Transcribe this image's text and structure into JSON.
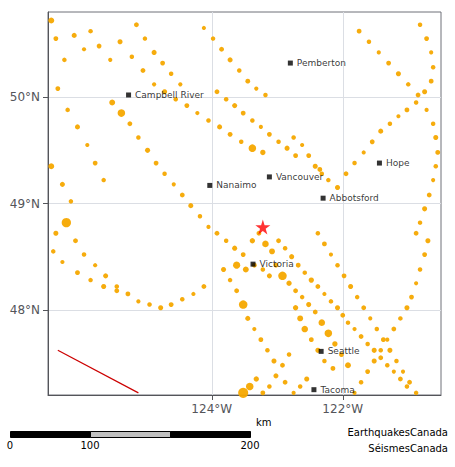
{
  "chart_data": {
    "type": "scatter",
    "xlim": [
      -126.5,
      -120.5
    ],
    "ylim": [
      47.2,
      50.8
    ],
    "xticks": [
      {
        "value": -124,
        "label": "124°W"
      },
      {
        "value": -122,
        "label": "122°W"
      }
    ],
    "yticks": [
      {
        "value": 48,
        "label": "48°N"
      },
      {
        "value": 49,
        "label": "49°N"
      },
      {
        "value": 50,
        "label": "50°N"
      }
    ],
    "grid": true,
    "annotations": [
      "km",
      "0",
      "100",
      "200",
      "EarthquakesCanada",
      "SéismesCanada"
    ],
    "series": [
      {
        "type": "line",
        "color": "#cc0000",
        "x": [
          -126.35,
          -125.12
        ],
        "y": [
          47.62,
          47.22
        ]
      },
      {
        "type": "scatter",
        "marker": "circle",
        "color": "#f5a800",
        "x": [
          -126.45,
          -126.38,
          -126.25,
          -126.1,
          -125.95,
          -125.85,
          -125.72,
          -125.55,
          -125.4,
          -125.22,
          -125.05,
          -124.88,
          -124.72,
          -124.55,
          -124.38,
          -124.22,
          -124.05,
          -123.88,
          -123.72,
          -123.55,
          -123.38,
          -123.22,
          -126.35,
          -126.2,
          -126.05,
          -125.9,
          -125.78,
          -125.65,
          -126.45,
          -126.28,
          -126.15,
          -126.22,
          -126.08,
          -125.95,
          -125.78,
          -125.62,
          -125.45,
          -125.28,
          -125.12,
          -124.95,
          -124.78,
          -124.62,
          -124.45,
          -124.28,
          -124.12,
          -125.38,
          -125.52,
          -125.25,
          -125.12,
          -124.98,
          -124.85,
          -124.72,
          -124.58,
          -124.45,
          -124.32,
          -124.18,
          -124.05,
          -123.92,
          -123.78,
          -123.65,
          -123.52,
          -123.38,
          -123.28,
          -123.18,
          -123.08,
          -122.98,
          -122.88,
          -122.78,
          -122.68,
          -122.58,
          -122.48,
          -122.38,
          -122.28,
          -122.18,
          -122.08,
          -122.0,
          -121.92,
          -121.82,
          -121.72,
          -121.62,
          -121.52,
          -121.42,
          -121.32,
          -121.22,
          -121.12,
          -121.02,
          -122.15,
          -122.28,
          -122.38,
          -122.48,
          -122.58,
          -122.65,
          -122.72,
          -122.82,
          -122.92,
          -123.02,
          -123.12,
          -123.22,
          -123.42,
          -123.52,
          -123.32,
          -122.55,
          -122.65,
          -122.75,
          -122.88,
          -123.05,
          -123.15,
          -123.25,
          -123.35,
          -123.45,
          -123.52,
          -123.62,
          -123.72,
          -123.82,
          -123.62,
          -123.48,
          -123.35,
          -123.22,
          -123.12,
          -123.02,
          -122.92,
          -122.82,
          -122.72,
          -122.62,
          -122.52,
          -122.42,
          -122.32,
          -122.22,
          -122.12,
          -122.02,
          -121.92,
          -126.05,
          -125.85,
          -125.65,
          -125.45,
          -126.42,
          -126.38,
          -126.28,
          -122.35,
          -122.22,
          -122.08,
          -121.95,
          -121.82,
          -121.68,
          -121.55,
          -121.42,
          -121.28,
          -121.15,
          -121.02,
          -120.88,
          -120.75,
          -120.65,
          -120.62,
          -120.65,
          -120.72,
          -120.82,
          -120.7,
          -120.75,
          -120.82,
          -120.88,
          -120.95,
          -121.02,
          -121.12,
          -121.22,
          -121.32,
          -121.42,
          -121.52,
          -121.62,
          -121.72,
          -121.82,
          -122.38,
          -122.28,
          -122.18,
          -122.08,
          -121.98,
          -121.88,
          -121.78,
          -121.68,
          -121.58,
          -121.48,
          -121.38,
          -121.28,
          -121.18,
          -121.08,
          -120.98,
          -120.88,
          -122.75,
          -122.62,
          -122.52,
          -122.42,
          -122.32,
          -125.15,
          -125.02,
          -124.88,
          -124.75,
          -124.62,
          -124.48,
          -123.92,
          -123.78,
          -123.65,
          -123.52,
          -123.38,
          -123.25,
          -123.12,
          -122.98,
          -122.85,
          -122.72,
          -124.12,
          -123.98,
          -123.85,
          -123.72,
          -123.58,
          -123.45,
          -123.32,
          -123.18,
          -121.75,
          -121.6,
          -121.45,
          -121.3,
          -121.15,
          -121.0,
          -120.85,
          -120.72,
          -120.62,
          -120.58,
          -120.55,
          -120.58,
          -120.62,
          -120.68,
          -120.75,
          -120.82,
          -120.88
        ],
        "y": [
          50.72,
          50.55,
          50.35,
          50.58,
          50.45,
          50.62,
          50.48,
          50.35,
          50.52,
          50.38,
          50.25,
          50.12,
          50.05,
          49.98,
          49.92,
          49.85,
          49.78,
          49.72,
          49.65,
          49.58,
          49.52,
          49.48,
          50.08,
          49.88,
          49.72,
          49.55,
          49.38,
          49.22,
          49.35,
          49.18,
          49.02,
          48.82,
          48.65,
          48.52,
          48.42,
          48.32,
          48.22,
          48.15,
          48.08,
          48.05,
          48.02,
          48.05,
          48.1,
          48.15,
          48.22,
          49.85,
          49.95,
          49.75,
          49.62,
          49.5,
          49.38,
          49.28,
          49.18,
          49.08,
          48.98,
          48.88,
          48.78,
          48.72,
          48.65,
          48.58,
          48.52,
          48.65,
          48.72,
          48.62,
          48.55,
          48.65,
          48.58,
          48.5,
          48.42,
          48.35,
          48.28,
          48.22,
          48.15,
          48.08,
          48.02,
          47.95,
          47.88,
          47.82,
          47.75,
          47.68,
          47.62,
          47.55,
          47.48,
          47.42,
          47.35,
          47.28,
          47.45,
          47.52,
          47.62,
          47.72,
          47.82,
          47.92,
          48.02,
          47.58,
          47.48,
          47.38,
          47.28,
          47.22,
          47.28,
          47.22,
          47.35,
          47.35,
          47.28,
          47.22,
          47.32,
          47.52,
          47.62,
          47.72,
          47.82,
          47.92,
          48.05,
          48.18,
          48.28,
          48.38,
          48.42,
          48.38,
          48.42,
          48.38,
          48.32,
          48.42,
          48.32,
          48.25,
          48.18,
          48.12,
          48.05,
          47.98,
          47.88,
          47.78,
          47.68,
          47.58,
          47.48,
          48.35,
          48.28,
          48.22,
          48.18,
          48.55,
          48.72,
          48.45,
          49.32,
          49.22,
          49.15,
          49.28,
          49.38,
          49.48,
          49.58,
          49.68,
          49.75,
          49.82,
          49.88,
          49.95,
          50.05,
          50.15,
          50.28,
          50.42,
          50.55,
          50.68,
          48.65,
          48.52,
          48.38,
          48.25,
          48.12,
          48.02,
          47.92,
          47.82,
          47.72,
          47.62,
          47.52,
          47.42,
          47.32,
          47.22,
          48.72,
          48.62,
          48.52,
          48.42,
          48.32,
          48.22,
          48.12,
          48.02,
          47.92,
          47.82,
          47.72,
          47.62,
          47.52,
          47.42,
          47.32,
          47.22,
          49.62,
          49.55,
          49.45,
          49.35,
          49.28,
          50.68,
          50.55,
          50.42,
          50.32,
          50.22,
          50.12,
          50.05,
          49.98,
          49.92,
          49.85,
          49.78,
          49.72,
          49.65,
          49.58,
          49.52,
          49.45,
          50.65,
          50.55,
          50.45,
          50.35,
          50.25,
          50.15,
          50.08,
          50.02,
          50.62,
          50.52,
          50.42,
          50.32,
          50.22,
          50.12,
          50.02,
          49.88,
          49.75,
          49.62,
          49.48,
          49.35,
          49.22,
          49.08,
          48.95,
          48.82,
          48.72
        ],
        "sizes": [
          12,
          8,
          7,
          9,
          6,
          7,
          8,
          6,
          9,
          7,
          8,
          6,
          9,
          7,
          8,
          6,
          7,
          9,
          8,
          7,
          20,
          10,
          8,
          7,
          9,
          6,
          8,
          7,
          12,
          9,
          7,
          30,
          8,
          7,
          6,
          9,
          7,
          8,
          6,
          7,
          9,
          8,
          7,
          6,
          8,
          20,
          12,
          8,
          7,
          9,
          8,
          7,
          6,
          8,
          9,
          7,
          6,
          8,
          7,
          9,
          8,
          10,
          8,
          15,
          12,
          8,
          7,
          9,
          8,
          7,
          10,
          8,
          6,
          7,
          9,
          8,
          7,
          6,
          8,
          7,
          9,
          8,
          7,
          6,
          8,
          7,
          8,
          7,
          9,
          8,
          15,
          12,
          10,
          7,
          8,
          9,
          7,
          8,
          20,
          35,
          10,
          9,
          7,
          6,
          8,
          9,
          7,
          8,
          6,
          9,
          25,
          8,
          7,
          9,
          18,
          12,
          8,
          7,
          9,
          8,
          25,
          10,
          8,
          7,
          9,
          8,
          15,
          20,
          10,
          8,
          12,
          8,
          7,
          9,
          8,
          7,
          9,
          6,
          8,
          7,
          9,
          8,
          7,
          6,
          8,
          9,
          7,
          6,
          8,
          7,
          9,
          8,
          7,
          6,
          8,
          7,
          9,
          8,
          7,
          6,
          8,
          9,
          7,
          8,
          6,
          7,
          9,
          8,
          7,
          6,
          7,
          8,
          6,
          7,
          8,
          9,
          7,
          8,
          6,
          7,
          8,
          9,
          7,
          6,
          8,
          7,
          7,
          6,
          8,
          9,
          7,
          8,
          7,
          9,
          8,
          7,
          6,
          8,
          7,
          9,
          8,
          7,
          6,
          8,
          7,
          9,
          8,
          6,
          7,
          8,
          9,
          7,
          8,
          6,
          7,
          8,
          7,
          6,
          8,
          9,
          7,
          8,
          6,
          7,
          9,
          8,
          7,
          6,
          8,
          9,
          7,
          8
        ]
      },
      {
        "type": "scatter",
        "marker": "star",
        "color": "red",
        "x": [
          -123.22
        ],
        "y": [
          48.78
        ]
      },
      {
        "type": "scatter",
        "marker": "square",
        "color": "black",
        "x": [
          -125.27,
          -124.03,
          -123.12,
          -122.3,
          -121.44,
          -122.8,
          -123.37,
          -122.33,
          -122.44
        ],
        "y": [
          50.02,
          49.17,
          49.25,
          49.05,
          49.38,
          50.32,
          48.43,
          47.61,
          47.25
        ],
        "labels": [
          "Campbell River",
          "Nanaimo",
          "Vancouver",
          "Abbotsford",
          "Hope",
          "Pemberton",
          "Victoria",
          "Seattle",
          "Tacoma"
        ]
      }
    ]
  }
}
